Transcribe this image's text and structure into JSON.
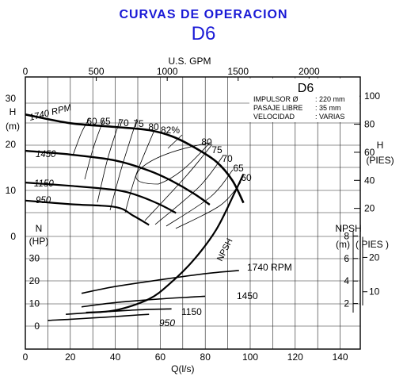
{
  "header": {
    "title": "CURVAS DE OPERACION",
    "model": "D6"
  },
  "chart_data": {
    "type": "line",
    "title": "CURVAS DE OPERACION",
    "subtitle": "D6",
    "x_bottom": {
      "label": "Q(l/s)",
      "ticks": [
        0,
        20,
        40,
        60,
        80,
        100,
        120,
        140
      ],
      "range": [
        0,
        140
      ]
    },
    "x_top": {
      "label": "U.S. GPM",
      "ticks": [
        0,
        500,
        1000,
        1500,
        2000
      ]
    },
    "y_head_left": {
      "label_units": [
        "H",
        "(m)"
      ],
      "ticks": [
        0,
        10,
        20,
        30
      ]
    },
    "y_head_right": {
      "label_units": [
        "H",
        "(PIES)"
      ],
      "ticks": [
        20,
        40,
        60,
        80,
        100
      ]
    },
    "y_power_left": {
      "label_units": [
        "N",
        "(HP)"
      ],
      "ticks": [
        0,
        10,
        20,
        30
      ]
    },
    "y_npsh_right_m": {
      "label_units": [
        "NPSH",
        "(m)"
      ],
      "ticks": [
        2,
        4,
        6,
        8
      ]
    },
    "y_npsh_right_ft": {
      "label_units": [
        "( PIES )"
      ],
      "ticks": [
        10,
        20
      ]
    },
    "info_box": {
      "model": "D6",
      "rows": [
        {
          "label": "IMPULSOR Ø",
          "value": ": 220 mm"
        },
        {
          "label": "PASAJE LIBRE",
          "value": ": 35 mm"
        },
        {
          "label": "VELOCIDAD",
          "value": ": VARIAS"
        }
      ]
    },
    "head_curves": [
      {
        "label": "1740 RPM",
        "points": [
          [
            0,
            26.5
          ],
          [
            20,
            24.6
          ],
          [
            40,
            23.8
          ],
          [
            55,
            23.1
          ],
          [
            65,
            21.8
          ],
          [
            75,
            19.4
          ],
          [
            85,
            16.2
          ],
          [
            92,
            12.2
          ],
          [
            97,
            7.3
          ]
        ]
      },
      {
        "label": "1450",
        "points": [
          [
            0,
            18.6
          ],
          [
            20,
            17.8
          ],
          [
            40,
            16.5
          ],
          [
            55,
            14.3
          ],
          [
            65,
            12.1
          ],
          [
            75,
            9.3
          ],
          [
            82,
            6.9
          ]
        ]
      },
      {
        "label": "1150",
        "points": [
          [
            0,
            11.7
          ],
          [
            20,
            11.0
          ],
          [
            40,
            10.1
          ],
          [
            50,
            8.9
          ],
          [
            60,
            6.9
          ],
          [
            67,
            5.1
          ]
        ]
      },
      {
        "label": "950",
        "points": [
          [
            0,
            7.8
          ],
          [
            20,
            7.0
          ],
          [
            40,
            6.4
          ],
          [
            48,
            4.5
          ],
          [
            55,
            2.5
          ]
        ]
      }
    ],
    "efficiency_labels": [
      "60",
      "65",
      "70",
      "75",
      "80",
      "82%",
      "80",
      "75",
      "70",
      "65",
      "60"
    ],
    "power_curves": [
      {
        "label": "1740 RPM",
        "points": [
          [
            25,
            14.5
          ],
          [
            40,
            17.5
          ],
          [
            60,
            20.5
          ],
          [
            80,
            23.2
          ],
          [
            95,
            24.6
          ]
        ]
      },
      {
        "label": "1450",
        "points": [
          [
            25,
            8.5
          ],
          [
            40,
            10.4
          ],
          [
            60,
            12.0
          ],
          [
            75,
            12.9
          ],
          [
            80,
            13.2
          ]
        ]
      },
      {
        "label": "1150",
        "points": [
          [
            18,
            5.2
          ],
          [
            30,
            6.0
          ],
          [
            45,
            6.9
          ],
          [
            55,
            7.4
          ],
          [
            65,
            7.6
          ]
        ]
      },
      {
        "label": "950",
        "points": [
          [
            10,
            2.5
          ],
          [
            20,
            3.0
          ],
          [
            30,
            3.6
          ],
          [
            40,
            4.2
          ],
          [
            50,
            4.9
          ],
          [
            55,
            5.2
          ]
        ]
      }
    ],
    "npsh_curve": {
      "label": "NPSH",
      "points_m": [
        [
          27,
          1.2
        ],
        [
          40,
          1.4
        ],
        [
          55,
          2.4
        ],
        [
          65,
          3.9
        ],
        [
          75,
          5.9
        ],
        [
          85,
          8.6
        ],
        [
          93,
          11.8
        ],
        [
          97,
          13.5
        ]
      ]
    }
  }
}
